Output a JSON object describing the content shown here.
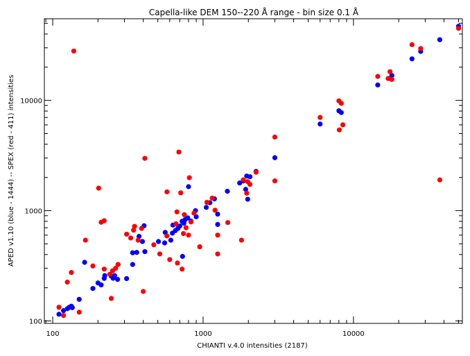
{
  "chart_data": {
    "type": "scatter",
    "title": "Capella-like DEM  150--220 Å range - bin size 0.1 Å",
    "xlabel": "CHIANTI v.4.0 intensities (2187)",
    "ylabel": "APED v1.10 (blue - 1444) -- SPEX (red - 411) intensities",
    "xscale": "log",
    "yscale": "log",
    "xlim": [
      88,
      53000
    ],
    "ylim": [
      95,
      55000
    ],
    "xticks": [
      {
        "value": 100,
        "label": "100"
      },
      {
        "value": 1000,
        "label": "1000"
      },
      {
        "value": 10000,
        "label": "10000"
      }
    ],
    "yticks": [
      {
        "value": 100,
        "label": "100"
      },
      {
        "value": 1000,
        "label": "1000"
      },
      {
        "value": 10000,
        "label": "10000"
      }
    ],
    "grid": false,
    "legend": "none",
    "series": [
      {
        "color": "#0000ff",
        "points": [
          [
            110,
            115
          ],
          [
            118,
            124
          ],
          [
            125,
            129
          ],
          [
            129,
            133
          ],
          [
            133,
            136
          ],
          [
            135,
            132
          ],
          [
            150,
            157
          ],
          [
            163,
            340
          ],
          [
            185,
            197
          ],
          [
            200,
            221
          ],
          [
            210,
            212
          ],
          [
            220,
            243
          ],
          [
            222,
            258
          ],
          [
            245,
            255
          ],
          [
            252,
            244
          ],
          [
            258,
            258
          ],
          [
            270,
            238
          ],
          [
            310,
            242
          ],
          [
            340,
            325
          ],
          [
            340,
            415
          ],
          [
            362,
            418
          ],
          [
            375,
            585
          ],
          [
            395,
            525
          ],
          [
            405,
            730
          ],
          [
            410,
            425
          ],
          [
            505,
            525
          ],
          [
            555,
            510
          ],
          [
            560,
            635
          ],
          [
            610,
            540
          ],
          [
            625,
            625
          ],
          [
            630,
            740
          ],
          [
            655,
            660
          ],
          [
            680,
            690
          ],
          [
            700,
            725
          ],
          [
            725,
            800
          ],
          [
            730,
            385
          ],
          [
            745,
            770
          ],
          [
            760,
            830
          ],
          [
            790,
            860
          ],
          [
            800,
            1650
          ],
          [
            830,
            805
          ],
          [
            890,
            1000
          ],
          [
            900,
            880
          ],
          [
            1050,
            1070
          ],
          [
            1110,
            1180
          ],
          [
            1190,
            1280
          ],
          [
            1250,
            930
          ],
          [
            1250,
            750
          ],
          [
            1450,
            1500
          ],
          [
            1750,
            1780
          ],
          [
            1850,
            1860
          ],
          [
            1920,
            1560
          ],
          [
            1950,
            2060
          ],
          [
            1980,
            1270
          ],
          [
            2050,
            2030
          ],
          [
            2250,
            2270
          ],
          [
            3000,
            3020
          ],
          [
            6000,
            6100
          ],
          [
            8000,
            8050
          ],
          [
            8300,
            7750
          ],
          [
            14500,
            13800
          ],
          [
            17500,
            15800
          ],
          [
            18000,
            16800
          ],
          [
            24500,
            23800
          ],
          [
            28000,
            27800
          ],
          [
            37500,
            35500
          ],
          [
            50000,
            47000
          ]
        ]
      },
      {
        "color": "#ff0000",
        "points": [
          [
            110,
            133
          ],
          [
            118,
            112
          ],
          [
            125,
            225
          ],
          [
            133,
            275
          ],
          [
            138,
            28000
          ],
          [
            150,
            120
          ],
          [
            165,
            540
          ],
          [
            185,
            315
          ],
          [
            202,
            1600
          ],
          [
            210,
            785
          ],
          [
            220,
            810
          ],
          [
            220,
            295
          ],
          [
            240,
            265
          ],
          [
            245,
            160
          ],
          [
            250,
            285
          ],
          [
            262,
            300
          ],
          [
            272,
            325
          ],
          [
            310,
            612
          ],
          [
            330,
            565
          ],
          [
            345,
            665
          ],
          [
            350,
            720
          ],
          [
            370,
            540
          ],
          [
            390,
            690
          ],
          [
            400,
            185
          ],
          [
            410,
            2980
          ],
          [
            470,
            490
          ],
          [
            515,
            405
          ],
          [
            575,
            1480
          ],
          [
            575,
            590
          ],
          [
            600,
            360
          ],
          [
            660,
            760
          ],
          [
            670,
            975
          ],
          [
            675,
            335
          ],
          [
            690,
            3400
          ],
          [
            710,
            1450
          ],
          [
            725,
            295
          ],
          [
            740,
            620
          ],
          [
            750,
            920
          ],
          [
            770,
            700
          ],
          [
            800,
            600
          ],
          [
            810,
            1990
          ],
          [
            830,
            790
          ],
          [
            870,
            950
          ],
          [
            950,
            470
          ],
          [
            1060,
            1190
          ],
          [
            1150,
            1300
          ],
          [
            1200,
            1010
          ],
          [
            1250,
            600
          ],
          [
            1250,
            405
          ],
          [
            1460,
            780
          ],
          [
            1800,
            540
          ],
          [
            1850,
            1900
          ],
          [
            1950,
            1440
          ],
          [
            1980,
            1830
          ],
          [
            2050,
            1730
          ],
          [
            2250,
            2230
          ],
          [
            3000,
            4650
          ],
          [
            3000,
            1860
          ],
          [
            6000,
            7000
          ],
          [
            8000,
            9900
          ],
          [
            8050,
            5400
          ],
          [
            8300,
            9400
          ],
          [
            8500,
            6000
          ],
          [
            14500,
            16500
          ],
          [
            17000,
            15800
          ],
          [
            17500,
            18200
          ],
          [
            18000,
            15500
          ],
          [
            24500,
            32000
          ],
          [
            28000,
            29500
          ],
          [
            37500,
            1900
          ],
          [
            50000,
            45000
          ]
        ]
      }
    ]
  }
}
